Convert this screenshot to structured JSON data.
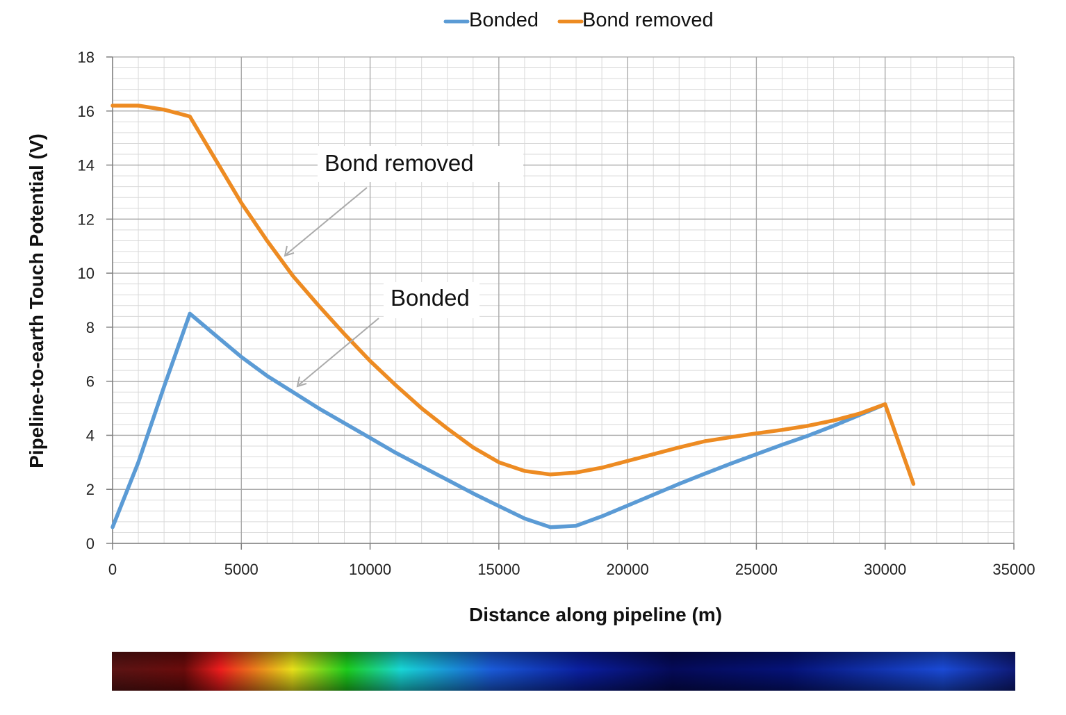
{
  "chart_data": {
    "type": "line",
    "xlabel": "Distance along pipeline (m)",
    "ylabel": "Pipeline-to-earth Touch Potential (V)",
    "xlim": [
      0,
      35000
    ],
    "ylim": [
      0,
      18
    ],
    "xticks": [
      0,
      5000,
      10000,
      15000,
      20000,
      25000,
      30000,
      35000
    ],
    "yticks": [
      0,
      2,
      4,
      6,
      8,
      10,
      12,
      14,
      16,
      18
    ],
    "x_minor_step": 1000,
    "y_minor_step": 0.4,
    "grid": true,
    "legend_position": "top-center",
    "series": [
      {
        "name": "Bonded",
        "color": "#5b9bd5",
        "x": [
          0,
          1000,
          2000,
          3000,
          4000,
          5000,
          6000,
          7000,
          8000,
          9000,
          10000,
          11000,
          12000,
          13000,
          14000,
          15000,
          16000,
          17000,
          18000,
          19000,
          20000,
          21000,
          22000,
          23000,
          24000,
          25000,
          26000,
          27000,
          28000,
          29000,
          30000
        ],
        "y": [
          0.6,
          3.0,
          5.8,
          8.5,
          7.7,
          6.9,
          6.2,
          5.6,
          5.0,
          4.45,
          3.9,
          3.35,
          2.85,
          2.35,
          1.85,
          1.38,
          0.92,
          0.6,
          0.65,
          1.0,
          1.4,
          1.8,
          2.2,
          2.58,
          2.95,
          3.3,
          3.65,
          3.98,
          4.35,
          4.75,
          5.15
        ]
      },
      {
        "name": "Bond removed",
        "color": "#ed8b22",
        "x": [
          0,
          1000,
          2000,
          3000,
          4000,
          5000,
          6000,
          7000,
          8000,
          9000,
          10000,
          11000,
          12000,
          13000,
          14000,
          15000,
          16000,
          17000,
          18000,
          19000,
          20000,
          21000,
          22000,
          23000,
          24000,
          25000,
          26000,
          27000,
          28000,
          29000,
          30000,
          31100
        ],
        "y": [
          16.2,
          16.2,
          16.05,
          15.8,
          14.2,
          12.6,
          11.2,
          9.9,
          8.8,
          7.75,
          6.75,
          5.85,
          5.0,
          4.25,
          3.55,
          3.0,
          2.68,
          2.55,
          2.62,
          2.8,
          3.05,
          3.3,
          3.55,
          3.78,
          3.93,
          4.07,
          4.2,
          4.35,
          4.55,
          4.8,
          5.15,
          2.2
        ]
      }
    ],
    "annotations": [
      {
        "text": "Bond removed",
        "target_x": 6700,
        "target_y": 10.7
      },
      {
        "text": "Bonded",
        "target_x": 7200,
        "target_y": 5.8
      }
    ]
  },
  "colorbar": {
    "stops": [
      "#5a1414",
      "#6a0b0b",
      "#ee1d1d",
      "#e8e01a",
      "#1ccc1c",
      "#18d6d6",
      "#1a5ad8",
      "#0a1e9e",
      "#050a58",
      "#051278",
      "#1a4ad6",
      "#0e1a78"
    ]
  }
}
